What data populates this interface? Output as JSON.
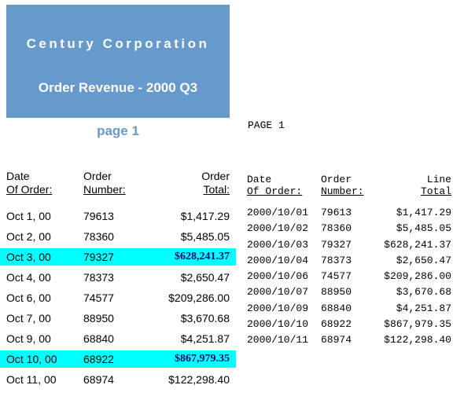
{
  "banner": {
    "company": "Century Corporation",
    "subtitle": "Order Revenue - 2000 Q3"
  },
  "left_report": {
    "page_label": "page 1",
    "headers": {
      "date_line1": "Date",
      "date_line2": "Of Order:",
      "number_line1": "Order",
      "number_line2": "Number:",
      "total_line1": "Order",
      "total_line2": "Total:"
    },
    "highlight_color": "#00ffff",
    "rows": [
      {
        "date": "Oct 1, 00",
        "number": "79613",
        "total": "$1,417.29",
        "highlight": false
      },
      {
        "date": "Oct 2, 00",
        "number": "78360",
        "total": "$5,485.05",
        "highlight": false
      },
      {
        "date": "Oct 3, 00",
        "number": "79327",
        "total": "$628,241.37",
        "highlight": true
      },
      {
        "date": "Oct 4, 00",
        "number": "78373",
        "total": "$2,650.47",
        "highlight": false
      },
      {
        "date": "Oct 6, 00",
        "number": "74577",
        "total": "$209,286.00",
        "highlight": false
      },
      {
        "date": "Oct 7, 00",
        "number": "88950",
        "total": "$3,670.68",
        "highlight": false
      },
      {
        "date": "Oct 9, 00",
        "number": "68840",
        "total": "$4,251.87",
        "highlight": false
      },
      {
        "date": "Oct 10, 00",
        "number": "68922",
        "total": "$867,979.35",
        "highlight": true
      },
      {
        "date": "Oct 11, 00",
        "number": "68974",
        "total": "$122,298.40",
        "highlight": false
      }
    ]
  },
  "right_report": {
    "page_label": "PAGE  1",
    "headers": {
      "date_line1": "Date",
      "date_line2": "Of Order:",
      "number_line1": "Order",
      "number_line2": "Number:",
      "total_line1": "Line",
      "total_line2": "Total"
    },
    "rows": [
      {
        "date": "2000/10/01",
        "number": "79613",
        "total": "$1,417.29"
      },
      {
        "date": "2000/10/02",
        "number": "78360",
        "total": "$5,485.05"
      },
      {
        "date": "2000/10/03",
        "number": "79327",
        "total": "$628,241.37"
      },
      {
        "date": "2000/10/04",
        "number": "78373",
        "total": "$2,650.47"
      },
      {
        "date": "2000/10/06",
        "number": "74577",
        "total": "$209,286.00"
      },
      {
        "date": "2000/10/07",
        "number": "88950",
        "total": "$3,670.68"
      },
      {
        "date": "2000/10/09",
        "number": "68840",
        "total": "$4,251.87"
      },
      {
        "date": "2000/10/10",
        "number": "68922",
        "total": "$867,979.35"
      },
      {
        "date": "2000/10/11",
        "number": "68974",
        "total": "$122,298.40"
      }
    ]
  }
}
